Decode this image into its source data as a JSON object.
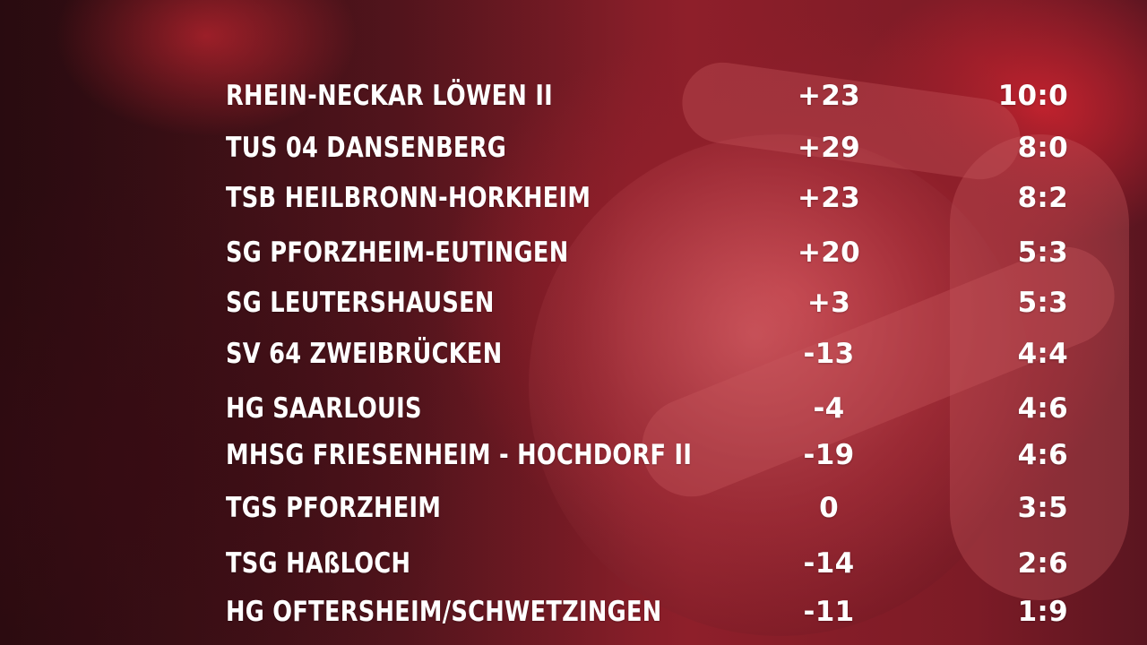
{
  "standings": [
    {
      "team": "RHEIN-NECKAR LÖWEN II",
      "diff": "+23",
      "points": "10:0"
    },
    {
      "team": "TUS 04 DANSENBERG",
      "diff": "+29",
      "points": "8:0"
    },
    {
      "team": "TSB HEILBRONN-HORKHEIM",
      "diff": "+23",
      "points": "8:2"
    },
    {
      "team": "SG PFORZHEIM-EUTINGEN",
      "diff": "+20",
      "points": "5:3"
    },
    {
      "team": "SG LEUTERSHAUSEN",
      "diff": "+3",
      "points": "5:3"
    },
    {
      "team": "SV 64 ZWEIBRÜCKEN",
      "diff": "-13",
      "points": "4:4"
    },
    {
      "team": "HG SAARLOUIS",
      "diff": "-4",
      "points": "4:6"
    },
    {
      "team": "MHSG FRIESENHEIM - HOCHDORF II",
      "diff": "-19",
      "points": "4:6"
    },
    {
      "team": "TGS PFORZHEIM",
      "diff": "0",
      "points": "3:5"
    },
    {
      "team": "TSG HAßLOCH",
      "diff": "-14",
      "points": "2:6"
    },
    {
      "team": "HG OFTERSHEIM/SCHWETZINGEN",
      "diff": "-11",
      "points": "1:9"
    }
  ],
  "colors": {
    "text": "#ffffff",
    "accent_red": "#c1222e",
    "background_dark": "#2a0d12"
  }
}
